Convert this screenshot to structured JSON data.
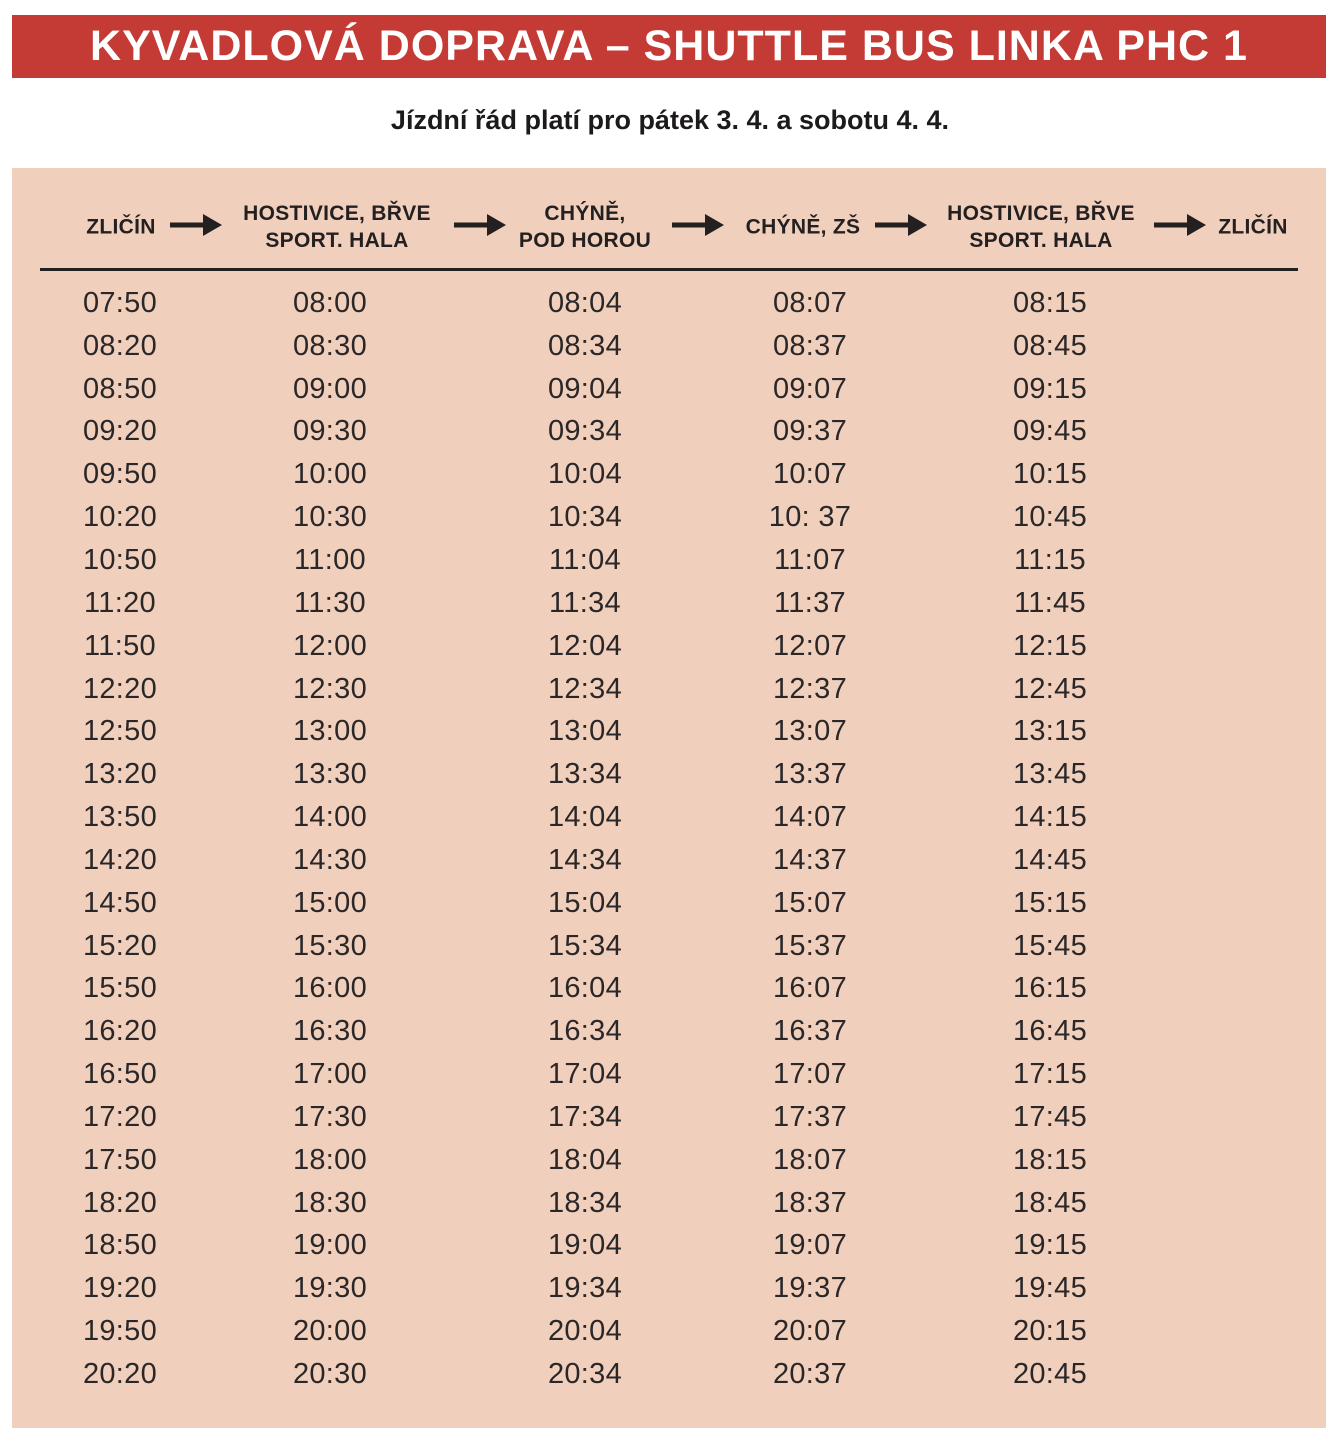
{
  "title": "KYVADLOVÁ DOPRAVA – SHUTTLE BUS LINKA PHC 1",
  "subtitle": "Jízdní řád platí pro pátek 3. 4. a sobotu 4. 4.",
  "colors": {
    "banner_red": "#c43a34",
    "panel_peach": "#f0d0bc",
    "ink": "#242021",
    "title_text": "#ffffff"
  },
  "route": {
    "arrow_icon": "right-arrow",
    "stops": [
      "ZLIČÍN",
      "HOSTIVICE, BŘVE\nSPORT. HALA",
      "CHÝNĚ,\nPOD HOROU",
      "CHÝNĚ, ZŠ",
      "HOSTIVICE, BŘVE\nSPORT. HALA",
      "ZLIČÍN"
    ]
  },
  "timetable": {
    "rows": [
      [
        "07:50",
        "08:00",
        "08:04",
        "08:07",
        "08:15"
      ],
      [
        "08:20",
        "08:30",
        "08:34",
        "08:37",
        "08:45"
      ],
      [
        "08:50",
        "09:00",
        "09:04",
        "09:07",
        "09:15"
      ],
      [
        "09:20",
        "09:30",
        "09:34",
        "09:37",
        "09:45"
      ],
      [
        "09:50",
        "10:00",
        "10:04",
        "10:07",
        "10:15"
      ],
      [
        "10:20",
        "10:30",
        "10:34",
        "10: 37",
        "10:45"
      ],
      [
        "10:50",
        "11:00",
        "11:04",
        "11:07",
        "11:15"
      ],
      [
        "11:20",
        "11:30",
        "11:34",
        "11:37",
        "11:45"
      ],
      [
        "11:50",
        "12:00",
        "12:04",
        "12:07",
        "12:15"
      ],
      [
        "12:20",
        "12:30",
        "12:34",
        "12:37",
        "12:45"
      ],
      [
        "12:50",
        "13:00",
        "13:04",
        "13:07",
        "13:15"
      ],
      [
        "13:20",
        "13:30",
        "13:34",
        "13:37",
        "13:45"
      ],
      [
        "13:50",
        "14:00",
        "14:04",
        "14:07",
        "14:15"
      ],
      [
        "14:20",
        "14:30",
        "14:34",
        "14:37",
        "14:45"
      ],
      [
        "14:50",
        "15:00",
        "15:04",
        "15:07",
        "15:15"
      ],
      [
        "15:20",
        "15:30",
        "15:34",
        "15:37",
        "15:45"
      ],
      [
        "15:50",
        "16:00",
        "16:04",
        "16:07",
        "16:15"
      ],
      [
        "16:20",
        "16:30",
        "16:34",
        "16:37",
        "16:45"
      ],
      [
        "16:50",
        "17:00",
        "17:04",
        "17:07",
        "17:15"
      ],
      [
        "17:20",
        "17:30",
        "17:34",
        "17:37",
        "17:45"
      ],
      [
        "17:50",
        "18:00",
        "18:04",
        "18:07",
        "18:15"
      ],
      [
        "18:20",
        "18:30",
        "18:34",
        "18:37",
        "18:45"
      ],
      [
        "18:50",
        "19:00",
        "19:04",
        "19:07",
        "19:15"
      ],
      [
        "19:20",
        "19:30",
        "19:34",
        "19:37",
        "19:45"
      ],
      [
        "19:50",
        "20:00",
        "20:04",
        "20:07",
        "20:15"
      ],
      [
        "20:20",
        "20:30",
        "20:34",
        "20:37",
        "20:45"
      ]
    ]
  }
}
